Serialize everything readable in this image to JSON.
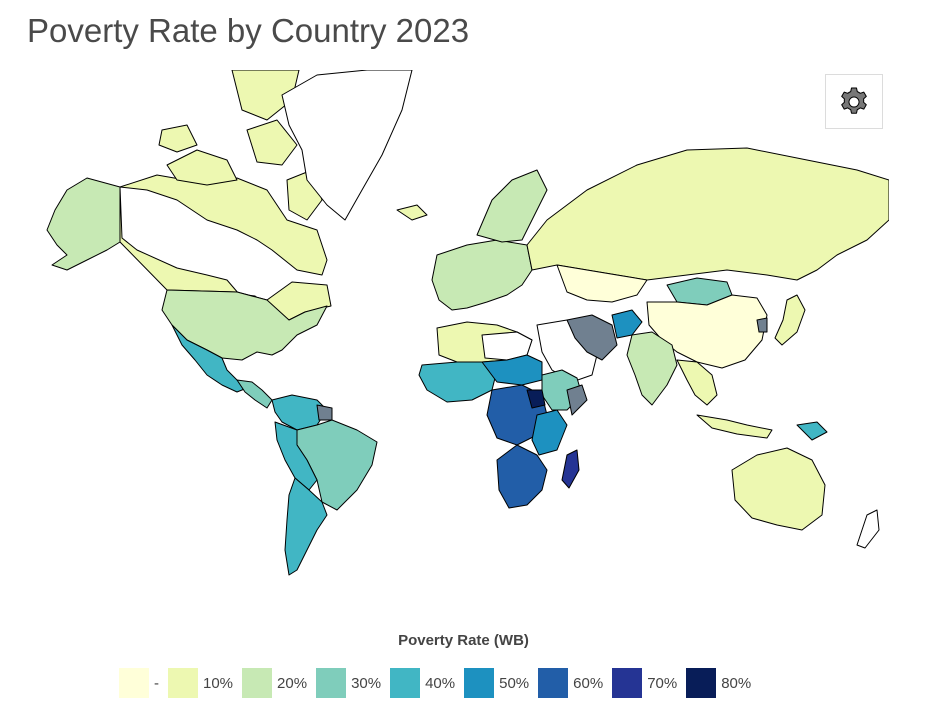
{
  "title": "Poverty Rate by Country 2023",
  "settings": {
    "icon": "gear-icon",
    "color": "#777777"
  },
  "legend": {
    "title": "Poverty Rate (WB)",
    "items": [
      {
        "label": "-",
        "color": "#ffffd9"
      },
      {
        "label": "10%",
        "color": "#edf8b1"
      },
      {
        "label": "20%",
        "color": "#c7e9b4"
      },
      {
        "label": "30%",
        "color": "#7fcdbb"
      },
      {
        "label": "40%",
        "color": "#41b6c4"
      },
      {
        "label": "50%",
        "color": "#1d91c0"
      },
      {
        "label": "60%",
        "color": "#225ea8"
      },
      {
        "label": "70%",
        "color": "#253494"
      },
      {
        "label": "80%",
        "color": "#081d58"
      }
    ],
    "no_data_color": "#ffffff",
    "other_color": "#708090"
  }
}
